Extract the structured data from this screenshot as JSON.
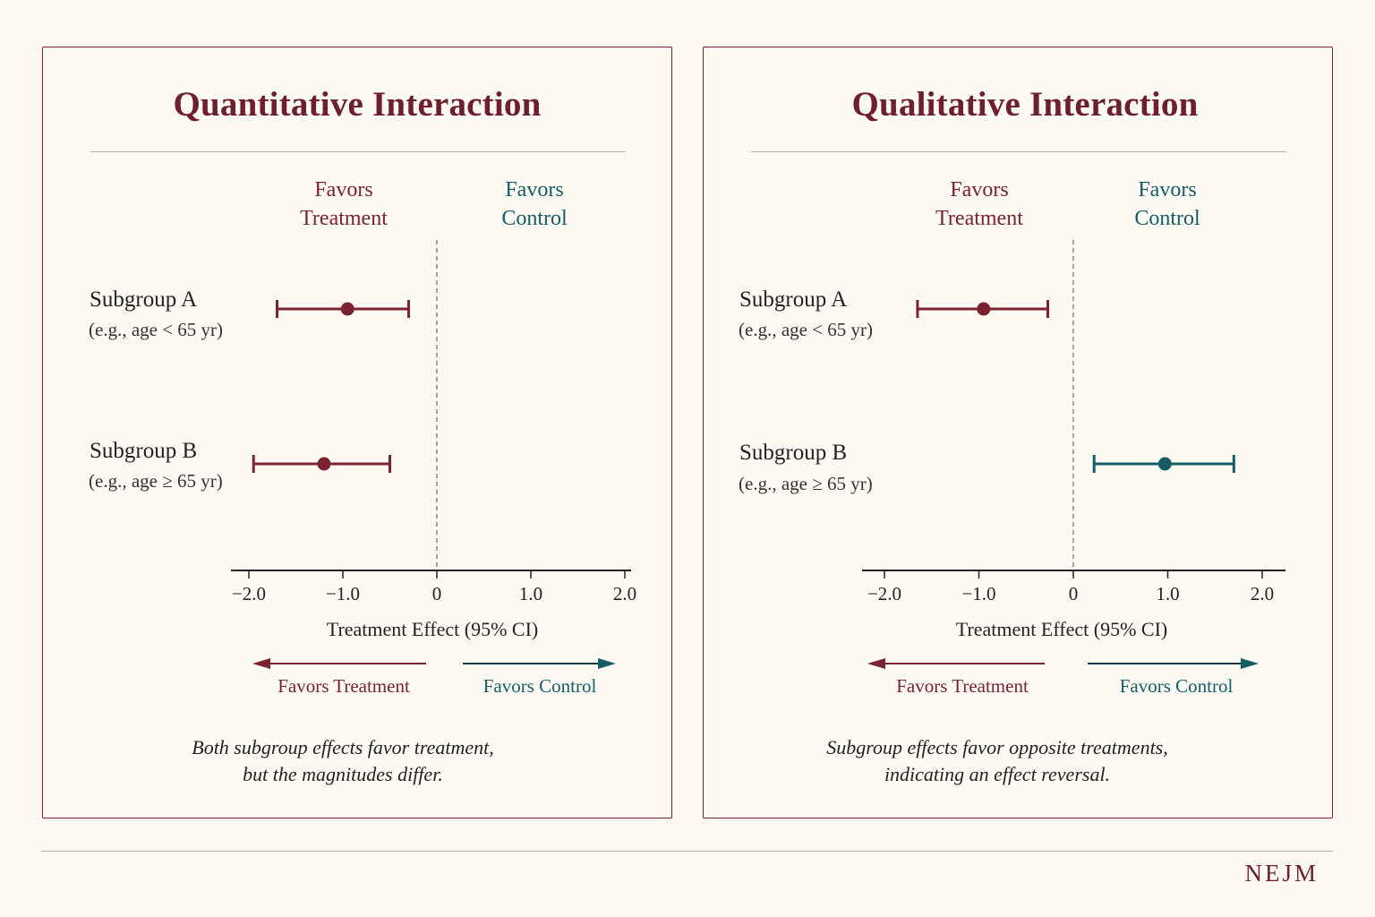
{
  "chart_data": [
    {
      "type": "forest",
      "title": "Quantitative Interaction",
      "favors_header": {
        "left": [
          "Favors",
          "Treatment"
        ],
        "right": [
          "Favors",
          "Control"
        ]
      },
      "xlabel": "Treatment Effect (95% CI)",
      "xlim": [
        -2.1,
        2.0
      ],
      "xticks": [
        -2.0,
        -1.0,
        0,
        1.0,
        2.0
      ],
      "xtick_labels": [
        "−2.0",
        "−1.0",
        "0",
        "1.0",
        "2.0"
      ],
      "reference_line": 0,
      "subgroups": [
        {
          "name": "Subgroup A",
          "detail": "(e.g., age < 65 yr)",
          "estimate": -0.95,
          "ci": [
            -1.7,
            -0.3
          ],
          "color": "#7a2230"
        },
        {
          "name": "Subgroup B",
          "detail": "(e.g., age ≥ 65 yr)",
          "estimate": -1.2,
          "ci": [
            -1.95,
            -0.5
          ],
          "color": "#7a2230"
        }
      ],
      "direction_labels": {
        "left": "Favors Treatment",
        "right": "Favors Control"
      },
      "caption": [
        "Both subgroup effects favor treatment,",
        "but the magnitudes differ."
      ]
    },
    {
      "type": "forest",
      "title": "Qualitative Interaction",
      "favors_header": {
        "left": [
          "Favors",
          "Treatment"
        ],
        "right": [
          "Favors",
          "Control"
        ]
      },
      "xlabel": "Treatment Effect (95% CI)",
      "xlim": [
        -2.2,
        2.2
      ],
      "xticks": [
        -2.0,
        -1.0,
        0,
        1.0,
        2.0
      ],
      "xtick_labels": [
        "−2.0",
        "−1.0",
        "0",
        "1.0",
        "2.0"
      ],
      "reference_line": 0,
      "subgroups": [
        {
          "name": "Subgroup A",
          "detail": "(e.g., age < 65 yr)",
          "estimate": -0.95,
          "ci": [
            -1.65,
            -0.27
          ],
          "color": "#7a2230"
        },
        {
          "name": "Subgroup B",
          "detail": "(e.g., age ≥ 65 yr)",
          "estimate": 0.97,
          "ci": [
            0.22,
            1.7
          ],
          "color": "#155c66"
        }
      ],
      "direction_labels": {
        "left": "Favors Treatment",
        "right": "Favors Control"
      },
      "caption": [
        "Subgroup effects favor opposite treatments,",
        "indicating an effect reversal."
      ]
    }
  ],
  "colors": {
    "treatment": "#7a2230",
    "control": "#155c66",
    "border": "#7a2230",
    "rule": "#b5b0a8"
  },
  "footer": {
    "logo": "NEJM"
  }
}
